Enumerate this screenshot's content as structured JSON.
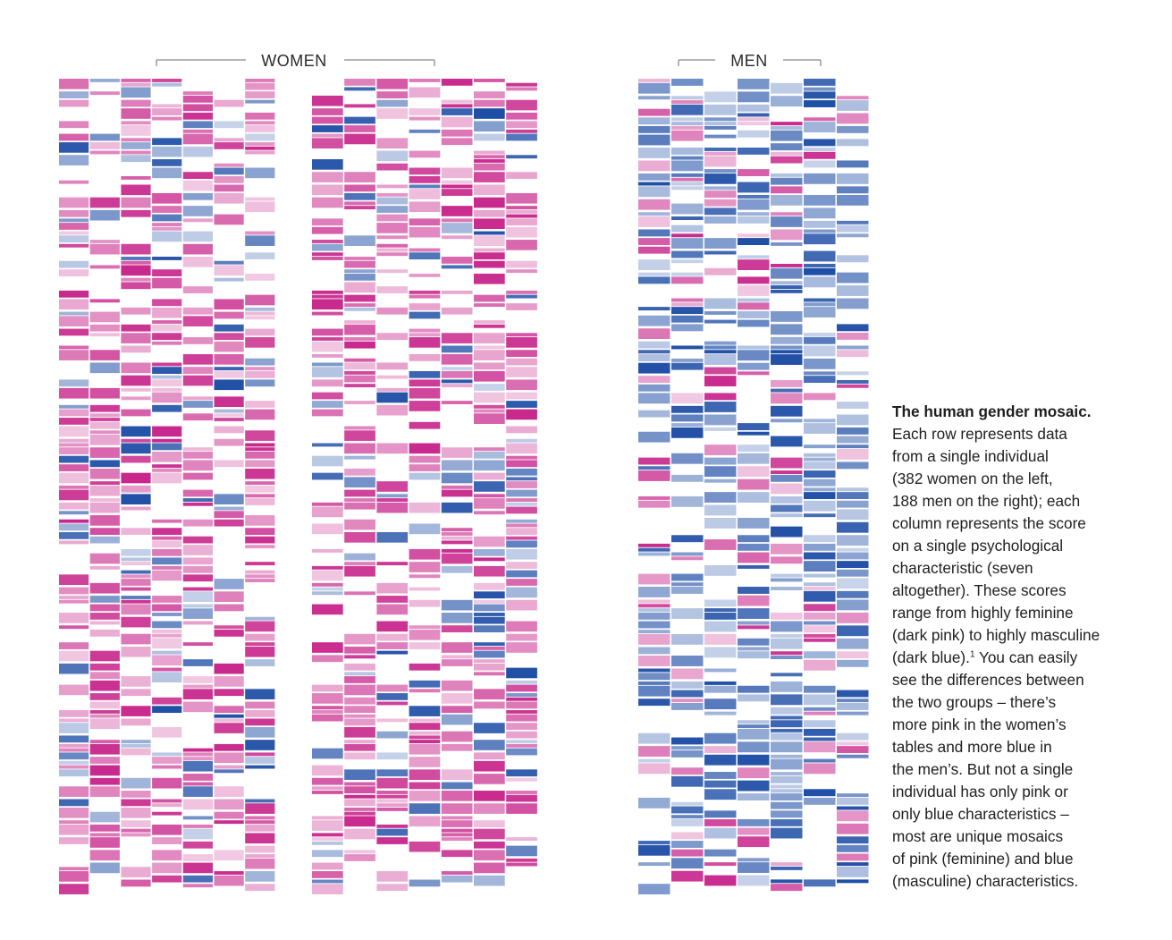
{
  "chart_data": {
    "type": "heatmap",
    "title": "",
    "groups": [
      {
        "name": "WOMEN",
        "individuals": 382,
        "characteristics": 7,
        "tables": 2,
        "dominant": "feminine"
      },
      {
        "name": "MEN",
        "individuals": 188,
        "characteristics": 7,
        "tables": 1,
        "dominant": "masculine"
      }
    ],
    "scale": {
      "range": [
        -1,
        1
      ],
      "low_label": "highly feminine (dark pink)",
      "high_label": "highly masculine (dark blue)",
      "low_color": "#c8288c",
      "high_color": "#1f4ea6",
      "neutral_color": "#ffffff"
    },
    "legend": "none",
    "grid": false
  },
  "headers": {
    "women": "WOMEN",
    "men": "MEN"
  },
  "caption": {
    "title": "The human gender mosaic.",
    "lines": [
      "Each row represents data",
      "from a single individual",
      "(382 women on the left,",
      "188 men on the right); each",
      "column represents the score",
      "on a single psychological",
      "characteristic (seven",
      "altogether). These scores",
      "range from highly feminine",
      "(dark pink) to highly masculine"
    ],
    "line_with_note_before": "(dark blue).",
    "note_marker": "1",
    "line_with_note_after": " You can easily",
    "lines_after": [
      "see the differences between",
      "the two groups – there’s",
      "more pink in the women’s",
      "tables and more blue in",
      "the men’s. But not a single",
      "individual has only pink or",
      "only blue characteristics –",
      "most are unique mosaics",
      "of pink (feminine) and blue",
      "(masculine) characteristics."
    ]
  }
}
